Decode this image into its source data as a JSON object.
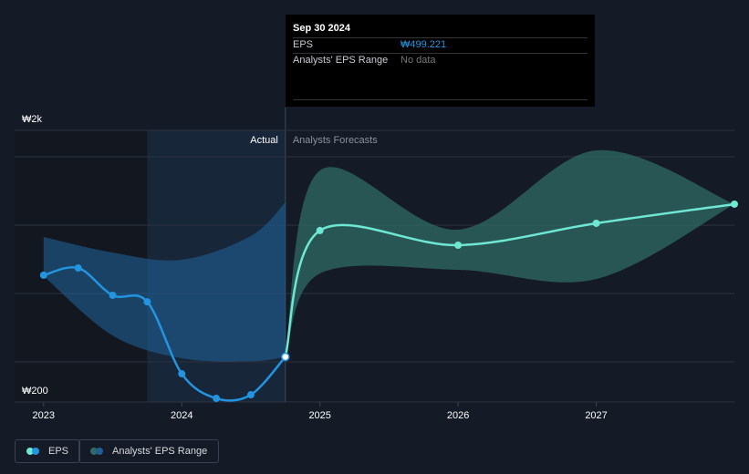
{
  "chart_data": {
    "type": "line",
    "x": [
      2023,
      2023.25,
      2023.5,
      2023.75,
      2024,
      2024.25,
      2024.5,
      2024.75,
      2025,
      2026,
      2027,
      2028
    ],
    "forecast_from": 2024.75,
    "highlight_from": 2023.75,
    "series": [
      {
        "name": "EPS",
        "color": "#2394df",
        "forecast_color": "#6ee7d3",
        "values": [
          1040,
          1088,
          907,
          864,
          387,
          224,
          248,
          499.221,
          1336,
          1239,
          1384,
          1511
        ]
      }
    ],
    "range": {
      "name": "Analysts' EPS Range",
      "color": "#2f6b66",
      "x": [
        2024.75,
        2025,
        2026,
        2027,
        2028
      ],
      "upper": [
        499.221,
        1734,
        1342,
        1867,
        1511
      ],
      "lower": [
        499.221,
        1052,
        1076,
        1015,
        1511
      ]
    },
    "past_range": {
      "color": "#1f5f95",
      "x": [
        2023,
        2023.5,
        2024,
        2024.5,
        2024.75
      ],
      "upper": [
        1293,
        1190,
        1142,
        1300,
        1523
      ],
      "lower": [
        1034,
        640,
        490,
        470,
        499.221
      ]
    },
    "xlim": [
      2022.79,
      2028
    ],
    "xticks": [
      2023,
      2024,
      2025,
      2026,
      2027
    ],
    "ylim": [
      200,
      2000
    ],
    "yticks": [
      {
        "value": 200,
        "label": "₩200"
      },
      {
        "value": 2000,
        "label": "₩2k"
      }
    ],
    "actual_label": "Actual",
    "forecast_label": "Analysts Forecasts",
    "tooltip": {
      "date": "Sep 30 2024",
      "rows": [
        [
          "EPS",
          "₩499.221"
        ],
        [
          "Analysts' EPS Range",
          "No data"
        ]
      ]
    }
  }
}
